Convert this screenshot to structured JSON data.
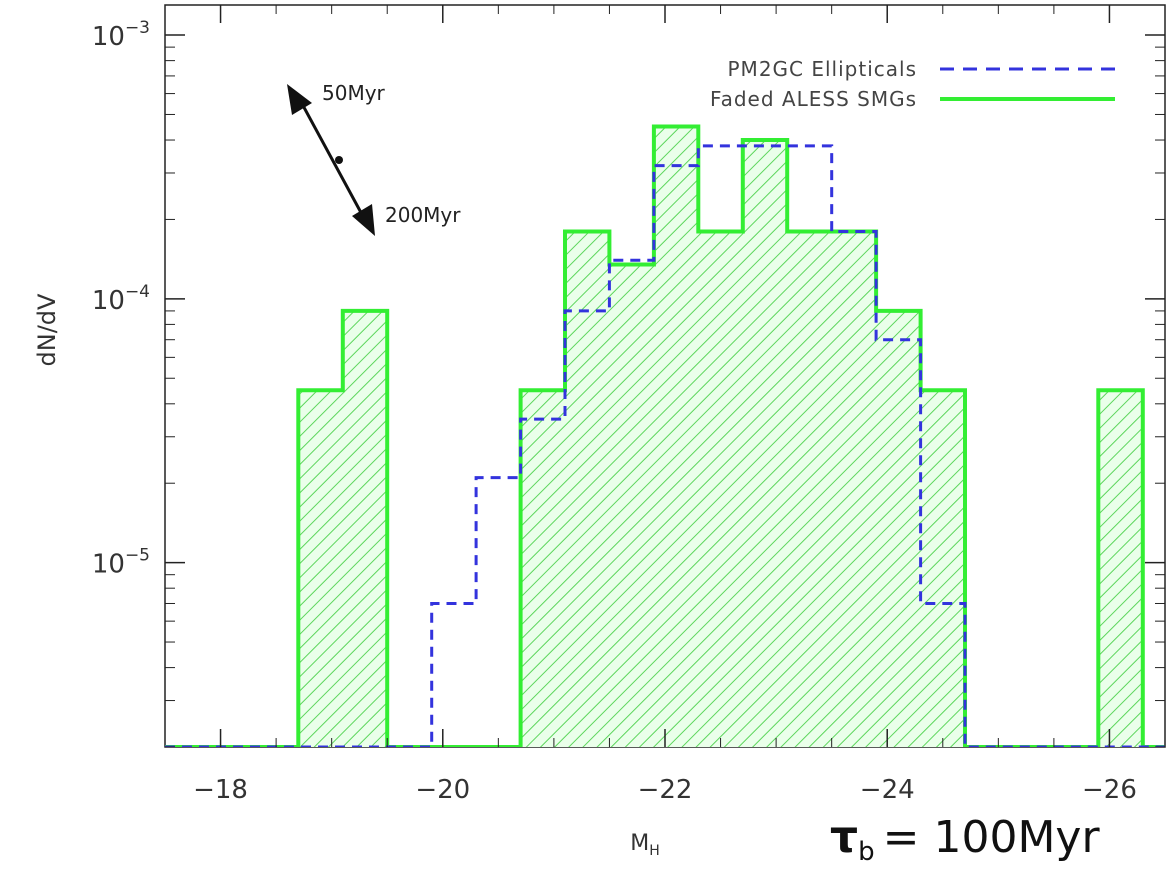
{
  "chart_data": {
    "type": "histogram",
    "title": "",
    "xlabel": "M",
    "xlabel_sub": "H",
    "ylabel": "dN/dV",
    "x_reversed": true,
    "xlim": [
      -17.5,
      -26.5
    ],
    "y_scale": "log",
    "ylim": [
      2e-06,
      0.0013
    ],
    "xticks": [
      {
        "value": -18,
        "label": "−18"
      },
      {
        "value": -20,
        "label": "−20"
      },
      {
        "value": -22,
        "label": "−22"
      },
      {
        "value": -24,
        "label": "−24"
      },
      {
        "value": -26,
        "label": "−26"
      }
    ],
    "yticks": [
      {
        "value": 0.001,
        "base": "10",
        "exp": "−3"
      },
      {
        "value": 0.0001,
        "base": "10",
        "exp": "−4"
      },
      {
        "value": 1e-05,
        "base": "10",
        "exp": "−5"
      }
    ],
    "series": [
      {
        "name": "PM2GC Ellipticals",
        "style": "dashed",
        "color": "#3333dd",
        "x": [
          -17.5,
          -19.9,
          -19.9,
          -20.3,
          -20.3,
          -20.7,
          -20.7,
          -21.1,
          -21.1,
          -21.5,
          -21.5,
          -21.9,
          -21.9,
          -22.3,
          -22.3,
          -23.5,
          -23.5,
          -23.9,
          -23.9,
          -24.3,
          -24.3,
          -24.7,
          -24.7,
          -26.5
        ],
        "y": [
          2e-06,
          2e-06,
          7e-06,
          7e-06,
          2.1e-05,
          2.1e-05,
          3.5e-05,
          3.5e-05,
          9e-05,
          9e-05,
          0.00014,
          0.00014,
          0.00032,
          0.00032,
          0.00038,
          0.00038,
          0.00018,
          0.00018,
          7e-05,
          7e-05,
          7e-06,
          7e-06,
          2e-06,
          2e-06
        ]
      },
      {
        "name": "Faded ALESS SMGs",
        "style": "solid-hatched",
        "color": "#33ee33",
        "x": [
          -17.5,
          -18.7,
          -18.7,
          -19.1,
          -19.1,
          -19.5,
          -19.5,
          -20.7,
          -20.7,
          -21.1,
          -21.1,
          -21.5,
          -21.5,
          -21.9,
          -21.9,
          -22.3,
          -22.3,
          -22.7,
          -22.7,
          -23.1,
          -23.1,
          -23.9,
          -23.9,
          -24.3,
          -24.3,
          -24.7,
          -24.7,
          -25.9,
          -25.9,
          -26.3,
          -26.3,
          -26.5
        ],
        "y": [
          2e-06,
          2e-06,
          4.5e-05,
          4.5e-05,
          9e-05,
          9e-05,
          2e-06,
          2e-06,
          4.5e-05,
          4.5e-05,
          0.00018,
          0.00018,
          0.000135,
          0.000135,
          0.00045,
          0.00045,
          0.00018,
          0.00018,
          0.0004,
          0.0004,
          0.00018,
          0.00018,
          9e-05,
          9e-05,
          4.5e-05,
          4.5e-05,
          2e-06,
          2e-06,
          4.5e-05,
          4.5e-05,
          2e-06,
          2e-06
        ]
      }
    ],
    "legend": {
      "position": "top-right",
      "entries": [
        "PM2GC Ellipticals",
        "Faded ALESS SMGs"
      ]
    },
    "annotations": {
      "arrow_up_label": "50Myr",
      "arrow_down_label": "200Myr",
      "tau_symbol": "τ",
      "tau_sub": "b",
      "tau_value": "= 100Myr"
    }
  }
}
